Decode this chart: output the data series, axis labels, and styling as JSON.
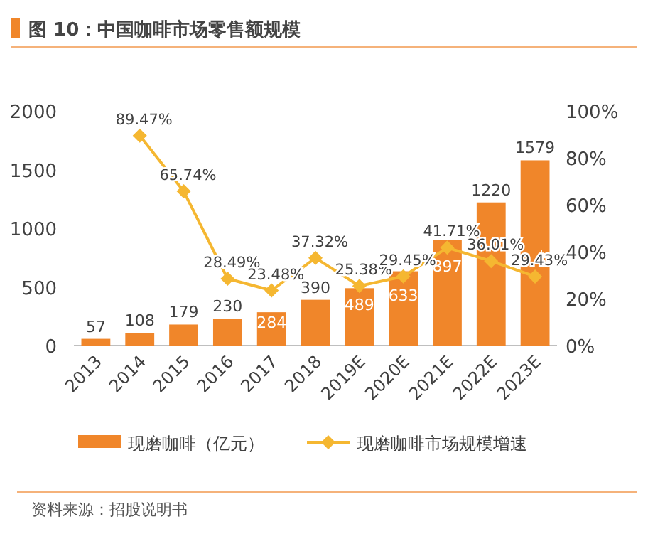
{
  "chart_data": {
    "type": "bar",
    "title": "图 10：中国咖啡市场零售额规模",
    "categories": [
      "2013",
      "2014",
      "2015",
      "2016",
      "2017",
      "2018",
      "2019E",
      "2020E",
      "2021E",
      "2022E",
      "2023E"
    ],
    "series": [
      {
        "name": "现磨咖啡（亿元）",
        "color": "#f0862a",
        "values": [
          57,
          108,
          179,
          230,
          284,
          390,
          489,
          633,
          897,
          1220,
          1579
        ],
        "value_labels": [
          "57",
          "108",
          "179",
          "230",
          "284",
          "390",
          "489",
          "633",
          "897",
          "1220",
          "1579"
        ]
      },
      {
        "name": "现磨咖啡市场规模增速",
        "type": "line",
        "axis": "y2",
        "color": "#f5b731",
        "values": [
          null,
          89.47,
          65.74,
          28.49,
          23.48,
          37.32,
          25.38,
          29.45,
          41.71,
          36.01,
          29.43
        ],
        "value_labels": [
          null,
          "89.47%",
          "65.74%",
          "28.49%",
          "23.48%",
          "37.32%",
          "25.38%",
          "29.45%",
          "41.71%",
          "36.01%",
          "29.43%"
        ]
      }
    ],
    "marker": "diamond",
    "ylim": [
      0,
      2000
    ],
    "yticks": [
      0,
      500,
      1000,
      1500,
      2000
    ],
    "y2lim": [
      0,
      100
    ],
    "y2ticks": [
      {
        "value": 0,
        "label": "0%"
      },
      {
        "value": 20,
        "label": "20%"
      },
      {
        "value": 40,
        "label": "40%"
      },
      {
        "value": 60,
        "label": "60%"
      },
      {
        "value": 80,
        "label": "80%"
      },
      {
        "value": 100,
        "label": "100%"
      }
    ],
    "legend": "bottom",
    "annotations": [
      "资料来源：招股说明书"
    ]
  }
}
